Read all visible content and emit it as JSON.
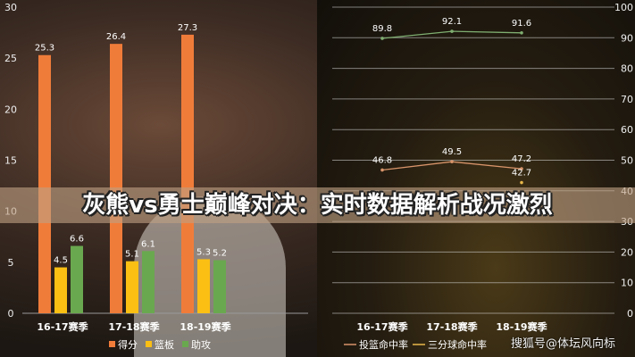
{
  "title": "灰熊vs勇士巅峰对决：实时数据解析战况激烈",
  "watermark": "搜狐号@体坛风向标",
  "chart_data": [
    {
      "type": "bar",
      "categories": [
        "16-17赛季",
        "17-18赛季",
        "18-19赛季"
      ],
      "ylim": [
        0,
        30
      ],
      "yticks": [
        0,
        5,
        10,
        15,
        20,
        25,
        30
      ],
      "grid": false,
      "legend": "bottom",
      "series": [
        {
          "name": "得分",
          "values": [
            25.3,
            26.4,
            27.3
          ],
          "color": "#f07c3a"
        },
        {
          "name": "篮板",
          "values": [
            4.5,
            5.1,
            5.3
          ],
          "color": "#fbbf14"
        },
        {
          "name": "助攻",
          "values": [
            6.6,
            6.1,
            5.2
          ],
          "color": "#6aa84f"
        }
      ]
    },
    {
      "type": "line",
      "categories": [
        "16-17赛季",
        "17-18赛季",
        "18-19赛季"
      ],
      "ylim": [
        0,
        100
      ],
      "yticks": [
        0,
        10,
        20,
        30,
        40,
        50,
        60,
        70,
        80,
        90,
        100
      ],
      "grid": true,
      "legend": "bottom",
      "series": [
        {
          "name": "投篮命中率",
          "values": [
            46.8,
            49.5,
            47.2
          ],
          "color": "#d8946a"
        },
        {
          "name": "三分球命中率",
          "values": [
            null,
            null,
            42.7
          ],
          "color": "#e8b84a"
        },
        {
          "name": "",
          "values": [
            89.8,
            92.1,
            91.6
          ],
          "color": "#7fae70"
        }
      ]
    }
  ]
}
